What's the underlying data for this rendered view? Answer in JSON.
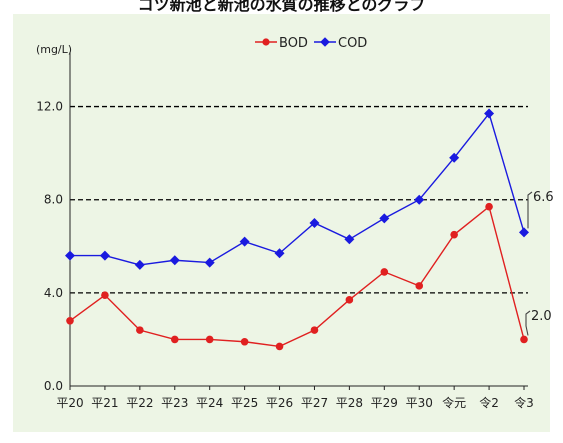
{
  "chart_data": {
    "type": "line",
    "title": "",
    "ylabel": "(mg/L)",
    "xlabel": "",
    "categories": [
      "平20",
      "平21",
      "平22",
      "平23",
      "平24",
      "平25",
      "平26",
      "平27",
      "平28",
      "平29",
      "平30",
      "令元",
      "令2",
      "令3"
    ],
    "series": [
      {
        "name": "BOD",
        "color": "#e02020",
        "marker": "circle",
        "values": [
          2.8,
          3.9,
          2.4,
          2.0,
          2.0,
          1.9,
          1.7,
          2.4,
          3.7,
          4.9,
          4.3,
          6.5,
          7.7,
          2.0
        ]
      },
      {
        "name": "COD",
        "color": "#1a1adf",
        "marker": "diamond",
        "values": [
          5.6,
          5.6,
          5.2,
          5.4,
          5.3,
          6.2,
          5.7,
          7.0,
          6.3,
          7.2,
          8.0,
          9.8,
          11.7,
          6.6
        ]
      }
    ],
    "ylim": [
      0,
      14
    ],
    "yticks": [
      0,
      4,
      8,
      12
    ],
    "ytick_labels": [
      "0.0",
      "4.0",
      "8.0",
      "12.0"
    ],
    "dashed_gridlines": [
      4,
      8,
      12
    ],
    "annotations": [
      {
        "series": "COD",
        "index": 13,
        "text": "6.6"
      },
      {
        "series": "BOD",
        "index": 13,
        "text": "2.0"
      }
    ],
    "legend": "top-center",
    "background_color": "#edf5e5"
  }
}
